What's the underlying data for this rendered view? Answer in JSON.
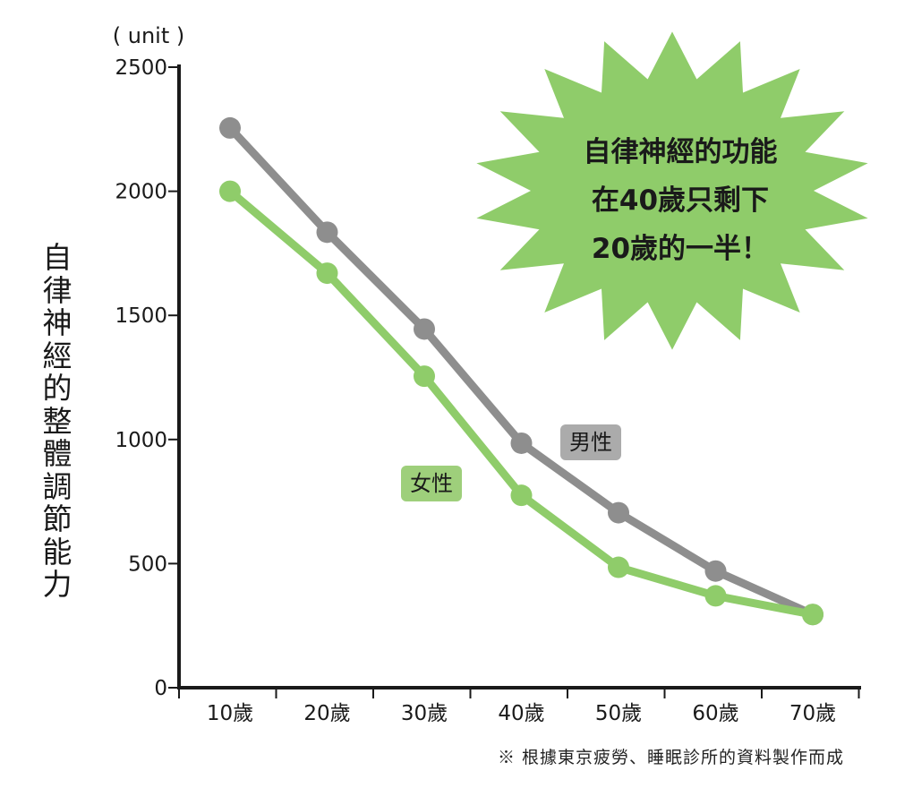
{
  "chart_data": {
    "type": "line",
    "unit_label": "( unit )",
    "ylabel": "自律神經的整體調節能力",
    "categories": [
      "10歲",
      "20歲",
      "30歲",
      "40歲",
      "50歲",
      "60歲",
      "70歲"
    ],
    "ylim": [
      0,
      2500
    ],
    "yticks": [
      0,
      500,
      1000,
      1500,
      2000,
      2500
    ],
    "series": [
      {
        "name": "男性",
        "color": "#8e8e8e",
        "values": [
          2255,
          1835,
          1445,
          985,
          705,
          470,
          295
        ]
      },
      {
        "name": "女性",
        "color": "#8fcc6a",
        "values": [
          2000,
          1670,
          1255,
          775,
          485,
          370,
          295
        ]
      }
    ],
    "grid": false,
    "callout": {
      "lines": [
        "自律神經的功能",
        "在40歲只剩下",
        "20歲的一半！"
      ],
      "color": "#8fcc6a"
    },
    "footnote": "※ 根據東京疲勞、睡眠診所的資料製作而成"
  }
}
